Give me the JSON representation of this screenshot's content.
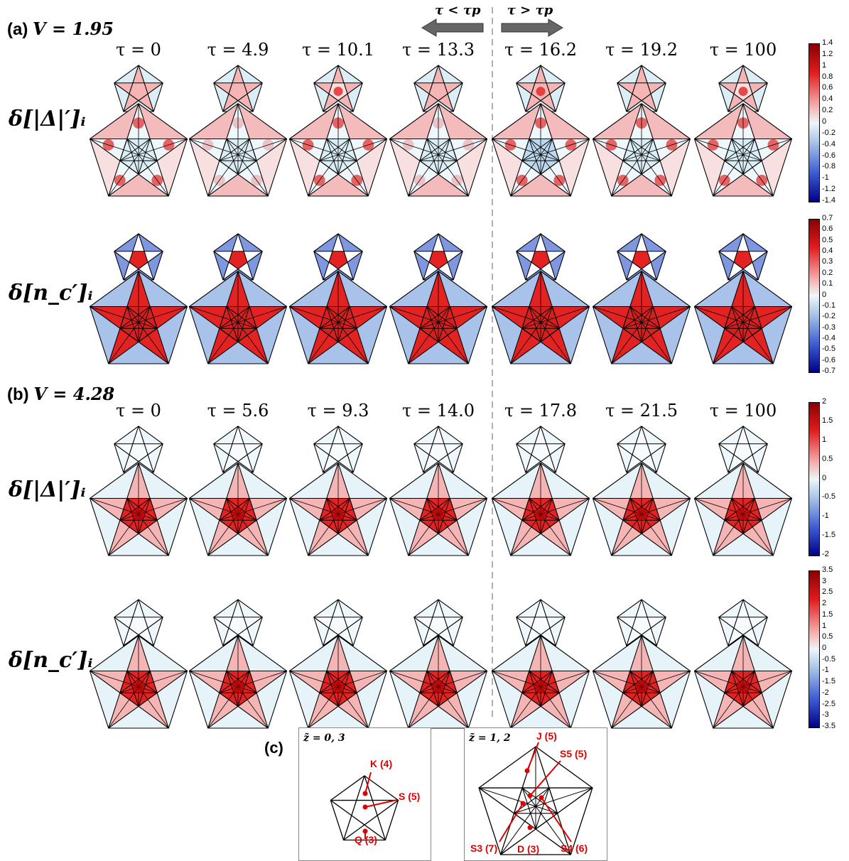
{
  "panel_a": {
    "label": "(a)",
    "v_text": "V = 1.95",
    "tau_values": [
      "τ = 0",
      "τ = 4.9",
      "τ = 10.1",
      "τ = 13.3",
      "τ = 16.2",
      "τ = 19.2",
      "τ = 100"
    ],
    "row1_label": "δ[|Δ|′]ᵢ",
    "row2_label": "δ[n_c′]ᵢ",
    "colorbar1_ticks": [
      "1.4",
      "1.2",
      "1",
      "0.8",
      "0.6",
      "0.4",
      "0.2",
      "0",
      "-0.2",
      "-0.4",
      "-0.6",
      "-0.8",
      "-1",
      "-1.2",
      "-1.4"
    ],
    "colorbar2_ticks": [
      "0.7",
      "0.6",
      "0.5",
      "0.4",
      "0.3",
      "0.2",
      "0.1",
      "0",
      "-0.1",
      "-0.2",
      "-0.3",
      "-0.4",
      "-0.5",
      "-0.6",
      "-0.7"
    ]
  },
  "panel_b": {
    "label": "(b)",
    "v_text": "V = 4.28",
    "tau_values": [
      "τ = 0",
      "τ = 5.6",
      "τ = 9.3",
      "τ = 14.0",
      "τ = 17.8",
      "τ = 21.5",
      "τ = 100"
    ],
    "row1_label": "δ[|Δ|′]ᵢ",
    "row2_label": "δ[n_c′]ᵢ",
    "colorbar1_ticks": [
      "2",
      "1.5",
      "1",
      "0.5",
      "0",
      "-0.5",
      "-1",
      "-1.5",
      "-2"
    ],
    "colorbar2_ticks": [
      "3.5",
      "3",
      "2.5",
      "2",
      "1.5",
      "1",
      "0.5",
      "0",
      "-0.5",
      "-1",
      "-1.5",
      "-2",
      "-2.5",
      "-3",
      "-3.5"
    ]
  },
  "arrows": {
    "left_label": "τ < τp",
    "right_label": "τ > τp"
  },
  "panel_c": {
    "label": "(c)",
    "left_title": "z̃ = 0, 3",
    "right_title": "z̃ = 1, 2",
    "left_labels": [
      "K (4)",
      "S (5)",
      "Q (3)"
    ],
    "right_labels": [
      "J (5)",
      "S5 (5)",
      "S3 (7)",
      "D (3)",
      "S4 (6)"
    ]
  },
  "colors": {
    "red": "#e32222",
    "dark_red": "#b80000",
    "pink": "#f5b5b5",
    "light_pink": "#fbdede",
    "light_blue": "#dbeef5",
    "blue": "#7e97e0",
    "dark_blue": "#00008b",
    "annotation_red": "#e00000",
    "divider_gray": "#b0b0b0",
    "arrow_gray": "#666666"
  }
}
